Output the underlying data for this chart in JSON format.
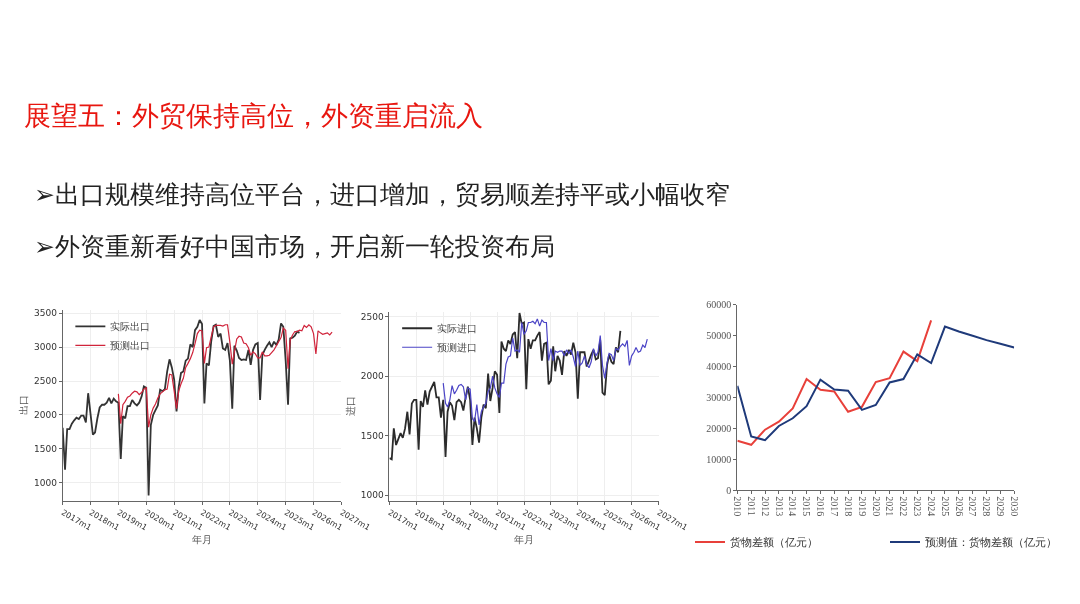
{
  "chart_data": [
    {
      "type": "line",
      "title": "展望五：外贸保持高位，外资重启流入",
      "annotations": [
        "➢出口规模维持高位平台，进口增加，贸易顺差持平或小幅收窄",
        "➢外资重新看好中国市场，开启新一轮投资布局"
      ],
      "xlabel": "年月",
      "ylabel": "出口",
      "grid": true,
      "legend": "top left",
      "xlim": [
        "2017-01",
        "2027-01"
      ],
      "ylim": [
        730,
        3550
      ],
      "xticks": [
        {
          "value": "2017-01",
          "label": "2017m1"
        },
        {
          "value": "2018-01",
          "label": "2018m1"
        },
        {
          "value": "2019-01",
          "label": "2019m1"
        },
        {
          "value": "2020-01",
          "label": "2020m1"
        },
        {
          "value": "2021-01",
          "label": "2021m1"
        },
        {
          "value": "2022-01",
          "label": "2022m1"
        },
        {
          "value": "2023-01",
          "label": "2023m1"
        },
        {
          "value": "2024-01",
          "label": "2024m1"
        },
        {
          "value": "2025-01",
          "label": "2025m1"
        },
        {
          "value": "2026-01",
          "label": "2026m1"
        },
        {
          "value": "2027-01",
          "label": "2027m1"
        }
      ],
      "yticks": [
        1000,
        1500,
        2000,
        2500,
        3000,
        3500
      ],
      "series": [
        {
          "name": "实际出口",
          "color": "#333333",
          "x": [
            "2017-01",
            "2017-02",
            "2017-03",
            "2017-04",
            "2017-05",
            "2017-06",
            "2017-07",
            "2017-08",
            "2017-09",
            "2017-10",
            "2017-11",
            "2017-12",
            "2018-02",
            "2018-03",
            "2018-04",
            "2018-05",
            "2018-06",
            "2018-07",
            "2018-08",
            "2018-09",
            "2018-10",
            "2018-11",
            "2018-12",
            "2019-01",
            "2019-02",
            "2019-03",
            "2019-04",
            "2019-05",
            "2019-06",
            "2019-07",
            "2019-08",
            "2019-09",
            "2019-10",
            "2019-11",
            "2019-12",
            "2020-01",
            "2020-02",
            "2020-03",
            "2020-04",
            "2020-05",
            "2020-06",
            "2020-07",
            "2020-08",
            "2020-09",
            "2020-10",
            "2020-11",
            "2020-12",
            "2021-01",
            "2021-02",
            "2021-03",
            "2021-04",
            "2021-05",
            "2021-06",
            "2021-07",
            "2021-08",
            "2021-09",
            "2021-10",
            "2021-11",
            "2021-12",
            "2022-01",
            "2022-02",
            "2022-03",
            "2022-04",
            "2022-05",
            "2022-06",
            "2022-07",
            "2022-08",
            "2022-09",
            "2022-10",
            "2022-11",
            "2022-12",
            "2023-01",
            "2023-02",
            "2023-03",
            "2023-04",
            "2023-05",
            "2023-06",
            "2023-07",
            "2023-08",
            "2023-09",
            "2023-10",
            "2023-11",
            "2023-12",
            "2024-01",
            "2024-02",
            "2024-03",
            "2024-04",
            "2024-05",
            "2024-06",
            "2024-07",
            "2024-08",
            "2024-09",
            "2024-10",
            "2024-11",
            "2024-12",
            "2025-01",
            "2025-02",
            "2025-03",
            "2025-04",
            "2025-05",
            "2025-06",
            "2025-07"
          ],
          "values": [
            1810,
            1190,
            1790,
            1790,
            1870,
            1920,
            1960,
            1940,
            1990,
            1990,
            1890,
            2320,
            1710,
            1740,
            1950,
            2110,
            2150,
            2150,
            2180,
            2250,
            2170,
            2240,
            2200,
            2180,
            1350,
            1980,
            1950,
            2130,
            2130,
            2220,
            2170,
            2140,
            2180,
            2270,
            2420,
            2400,
            810,
            1850,
            2000,
            2070,
            2140,
            2370,
            2350,
            2380,
            2640,
            2820,
            2700,
            2520,
            2050,
            2410,
            2620,
            2640,
            2800,
            2830,
            3040,
            3000,
            3250,
            3300,
            3400,
            3340,
            2170,
            2760,
            2730,
            3080,
            3310,
            3330,
            3150,
            3200,
            2980,
            2960,
            3060,
            2800,
            2090,
            3020,
            2950,
            2840,
            2810,
            2820,
            2810,
            2960,
            2740,
            2960,
            3040,
            3060,
            2220,
            2880,
            2960,
            3020,
            3070,
            3000,
            3080,
            3030,
            3110,
            3350,
            3300,
            2800,
            2150,
            3130,
            3140,
            3170,
            3230,
            3210
          ]
        },
        {
          "name": "预测出口",
          "color": "#d0243b",
          "x": [
            "2019-01",
            "2019-02",
            "2019-03",
            "2019-04",
            "2019-05",
            "2019-06",
            "2019-07",
            "2019-08",
            "2019-09",
            "2019-10",
            "2019-11",
            "2019-12",
            "2020-01",
            "2020-02",
            "2020-03",
            "2020-04",
            "2020-05",
            "2020-06",
            "2020-07",
            "2020-08",
            "2020-09",
            "2020-10",
            "2020-11",
            "2020-12",
            "2021-01",
            "2021-02",
            "2021-03",
            "2021-04",
            "2021-05",
            "2021-06",
            "2021-07",
            "2021-08",
            "2021-09",
            "2021-10",
            "2021-11",
            "2021-12",
            "2022-01",
            "2022-02",
            "2022-03",
            "2022-04",
            "2022-05",
            "2022-06",
            "2022-07",
            "2022-08",
            "2022-09",
            "2022-10",
            "2022-11",
            "2022-12",
            "2023-01",
            "2023-02",
            "2023-03",
            "2023-04",
            "2023-05",
            "2023-06",
            "2023-07",
            "2023-08",
            "2023-09",
            "2023-10",
            "2023-11",
            "2023-12",
            "2024-01",
            "2024-02",
            "2024-03",
            "2024-04",
            "2024-05",
            "2024-06",
            "2024-07",
            "2024-08",
            "2024-09",
            "2024-10",
            "2024-11",
            "2024-12",
            "2025-01",
            "2025-02",
            "2025-03",
            "2025-04",
            "2025-05",
            "2025-06",
            "2025-07",
            "2025-08",
            "2025-09",
            "2025-10",
            "2025-11",
            "2025-12",
            "2026-01",
            "2026-02",
            "2026-03",
            "2026-04",
            "2026-05",
            "2026-06",
            "2026-07",
            "2026-08",
            "2026-09"
          ],
          "values": [
            2310,
            1870,
            2150,
            2200,
            2260,
            2280,
            2320,
            2350,
            2340,
            2300,
            2330,
            2380,
            2400,
            1820,
            2000,
            2100,
            2160,
            2250,
            2310,
            2340,
            2370,
            2380,
            2600,
            2590,
            2350,
            2090,
            2350,
            2460,
            2540,
            2700,
            2760,
            2830,
            2920,
            3050,
            3200,
            3250,
            3240,
            2760,
            2990,
            3000,
            3150,
            3300,
            3320,
            3320,
            3320,
            3310,
            3330,
            3330,
            3070,
            2750,
            2930,
            3120,
            3160,
            3150,
            3060,
            3050,
            2990,
            2880,
            2930,
            2900,
            2840,
            2840,
            2930,
            2870,
            2870,
            2880,
            2920,
            2960,
            3020,
            3080,
            3140,
            3280,
            3250,
            2680,
            3100,
            3180,
            3230,
            3230,
            3250,
            3240,
            3320,
            3290,
            3330,
            3300,
            3200,
            2900,
            3240,
            3210,
            3190,
            3200,
            3210,
            3180,
            3220
          ]
        }
      ]
    },
    {
      "type": "line",
      "xlabel": "年月",
      "ylabel": "进口",
      "grid": true,
      "legend": "top left",
      "xlim": [
        "2017-01",
        "2027-01"
      ],
      "ylim": [
        950,
        2540
      ],
      "xticks": [
        {
          "value": "2017-01",
          "label": "2017m1"
        },
        {
          "value": "2018-01",
          "label": "2018m1"
        },
        {
          "value": "2019-01",
          "label": "2019m1"
        },
        {
          "value": "2020-01",
          "label": "2020m1"
        },
        {
          "value": "2021-01",
          "label": "2021m1"
        },
        {
          "value": "2022-01",
          "label": "2022m1"
        },
        {
          "value": "2023-01",
          "label": "2023m1"
        },
        {
          "value": "2024-01",
          "label": "2024m1"
        },
        {
          "value": "2025-01",
          "label": "2025m1"
        },
        {
          "value": "2026-01",
          "label": "2026m1"
        },
        {
          "value": "2027-01",
          "label": "2027m1"
        }
      ],
      "yticks": [
        1000,
        1500,
        2000,
        2500
      ],
      "series": [
        {
          "name": "实际进口",
          "color": "#2b2b2b",
          "x": [
            "2017-01",
            "2017-02",
            "2017-03",
            "2017-04",
            "2017-05",
            "2017-06",
            "2017-07",
            "2017-08",
            "2017-09",
            "2017-10",
            "2017-11",
            "2017-12",
            "2018-01",
            "2018-02",
            "2018-03",
            "2018-04",
            "2018-05",
            "2018-06",
            "2018-07",
            "2018-08",
            "2018-09",
            "2018-10",
            "2018-11",
            "2018-12",
            "2019-01",
            "2019-02",
            "2019-03",
            "2019-04",
            "2019-05",
            "2019-06",
            "2019-07",
            "2019-08",
            "2019-09",
            "2019-10",
            "2019-11",
            "2019-12",
            "2020-01",
            "2020-02",
            "2020-03",
            "2020-04",
            "2020-05",
            "2020-06",
            "2020-07",
            "2020-08",
            "2020-09",
            "2020-10",
            "2020-11",
            "2020-12",
            "2021-01",
            "2021-02",
            "2021-03",
            "2021-04",
            "2021-05",
            "2021-06",
            "2021-07",
            "2021-08",
            "2021-09",
            "2021-10",
            "2021-11",
            "2021-12",
            "2022-01",
            "2022-02",
            "2022-03",
            "2022-04",
            "2022-05",
            "2022-06",
            "2022-07",
            "2022-08",
            "2022-09",
            "2022-10",
            "2022-11",
            "2022-12",
            "2023-01",
            "2023-02",
            "2023-03",
            "2023-04",
            "2023-05",
            "2023-06",
            "2023-07",
            "2023-08",
            "2023-09",
            "2023-10",
            "2023-11",
            "2023-12",
            "2024-01",
            "2024-02",
            "2024-03",
            "2024-04",
            "2024-05",
            "2024-06",
            "2024-07",
            "2024-08",
            "2024-09",
            "2024-10",
            "2024-11",
            "2024-12",
            "2025-01",
            "2025-02",
            "2025-03",
            "2025-04",
            "2025-05",
            "2025-06",
            "2025-07",
            "2025-08"
          ],
          "values": [
            1310,
            1300,
            1560,
            1420,
            1470,
            1520,
            1480,
            1560,
            1700,
            1510,
            1770,
            1800,
            1800,
            1380,
            1790,
            1740,
            1880,
            1760,
            1870,
            1910,
            1950,
            1820,
            1820,
            1650,
            1800,
            1320,
            1700,
            1780,
            1750,
            1630,
            1780,
            1800,
            1780,
            1710,
            1820,
            1910,
            1800,
            1420,
            1650,
            1560,
            1440,
            1650,
            1760,
            1730,
            2020,
            1790,
            1900,
            2040,
            2010,
            1690,
            2290,
            2230,
            2210,
            2300,
            2270,
            2350,
            2370,
            2150,
            2530,
            2440,
            2450,
            1890,
            2310,
            2230,
            2300,
            2300,
            2340,
            2370,
            2130,
            2270,
            2280,
            1930,
            1960,
            2250,
            2040,
            2170,
            2130,
            2010,
            2210,
            2170,
            2220,
            2180,
            2280,
            2200,
            1810,
            2200,
            2200,
            2200,
            2080,
            2130,
            2180,
            2220,
            2140,
            2150,
            2300,
            1860,
            1840,
            2090,
            2180,
            2120,
            2100,
            2240,
            2200,
            2380
          ]
        },
        {
          "name": "预测进口",
          "color": "#4b44c6",
          "x": [
            "2019-01",
            "2019-02",
            "2019-03",
            "2019-04",
            "2019-05",
            "2019-06",
            "2019-07",
            "2019-08",
            "2019-09",
            "2019-10",
            "2019-11",
            "2019-12",
            "2020-01",
            "2020-02",
            "2020-03",
            "2020-04",
            "2020-05",
            "2020-06",
            "2020-07",
            "2020-08",
            "2020-09",
            "2020-10",
            "2020-11",
            "2020-12",
            "2021-01",
            "2021-02",
            "2021-03",
            "2021-04",
            "2021-05",
            "2021-06",
            "2021-07",
            "2021-08",
            "2021-09",
            "2021-10",
            "2021-11",
            "2021-12",
            "2022-01",
            "2022-02",
            "2022-03",
            "2022-04",
            "2022-05",
            "2022-06",
            "2022-07",
            "2022-08",
            "2022-09",
            "2022-10",
            "2022-11",
            "2022-12",
            "2023-01",
            "2023-02",
            "2023-03",
            "2023-04",
            "2023-05",
            "2023-06",
            "2023-07",
            "2023-08",
            "2023-09",
            "2023-10",
            "2023-11",
            "2023-12",
            "2024-01",
            "2024-02",
            "2024-03",
            "2024-04",
            "2024-05",
            "2024-06",
            "2024-07",
            "2024-08",
            "2024-09",
            "2024-10",
            "2024-11",
            "2024-12",
            "2025-01",
            "2025-02",
            "2025-03",
            "2025-04",
            "2025-05",
            "2025-06",
            "2025-07",
            "2025-08",
            "2025-09",
            "2025-10",
            "2025-11",
            "2025-12",
            "2026-01",
            "2026-02",
            "2026-03",
            "2026-04",
            "2026-05",
            "2026-06",
            "2026-07",
            "2026-08"
          ],
          "values": [
            1940,
            1770,
            1740,
            1800,
            1920,
            1850,
            1880,
            1920,
            1930,
            1910,
            1800,
            1900,
            1890,
            1640,
            1620,
            1760,
            1590,
            1700,
            1740,
            1770,
            1870,
            1900,
            2000,
            1900,
            1850,
            1820,
            1940,
            1940,
            2100,
            2160,
            2170,
            2320,
            2210,
            2220,
            2200,
            2450,
            2350,
            2380,
            2450,
            2450,
            2460,
            2440,
            2480,
            2420,
            2470,
            2450,
            2450,
            2130,
            2230,
            2130,
            2210,
            2200,
            2210,
            2210,
            2170,
            2220,
            2190,
            2220,
            2160,
            2080,
            2210,
            2090,
            2110,
            2170,
            2100,
            2070,
            2120,
            2230,
            2170,
            2200,
            2340,
            2090,
            1980,
            2110,
            2190,
            2180,
            2130,
            2230,
            2220,
            2250,
            2270,
            2250,
            2300,
            2090,
            2170,
            2200,
            2240,
            2200,
            2210,
            2260,
            2240,
            2310
          ]
        }
      ]
    },
    {
      "type": "line",
      "legend": "bottom",
      "ylim": [
        0,
        60000
      ],
      "yticks": [
        0,
        10000,
        20000,
        30000,
        40000,
        50000,
        60000
      ],
      "categories": [
        "2010",
        "2011",
        "2012",
        "2013",
        "2014",
        "2015",
        "2016",
        "2017",
        "2018",
        "2019",
        "2020",
        "2021",
        "2022",
        "2023",
        "2024",
        "2025",
        "2026",
        "2027",
        "2028",
        "2029",
        "2030"
      ],
      "series": [
        {
          "name": "货物差额（亿元）",
          "color": "#e8403a",
          "values": [
            16000,
            14700,
            19600,
            22200,
            26500,
            36000,
            32500,
            32000,
            25400,
            27000,
            35000,
            36300,
            44900,
            41800,
            55000,
            null,
            null,
            null,
            null,
            null,
            null
          ]
        },
        {
          "name": "预测值：货物差额（亿元）",
          "color": "#1f3a7a",
          "values": [
            33800,
            17400,
            16200,
            20800,
            23300,
            27200,
            35800,
            32600,
            32200,
            26000,
            27600,
            34900,
            36000,
            44000,
            41200,
            53000,
            51400,
            50000,
            48600,
            47400,
            46200
          ]
        }
      ]
    }
  ]
}
